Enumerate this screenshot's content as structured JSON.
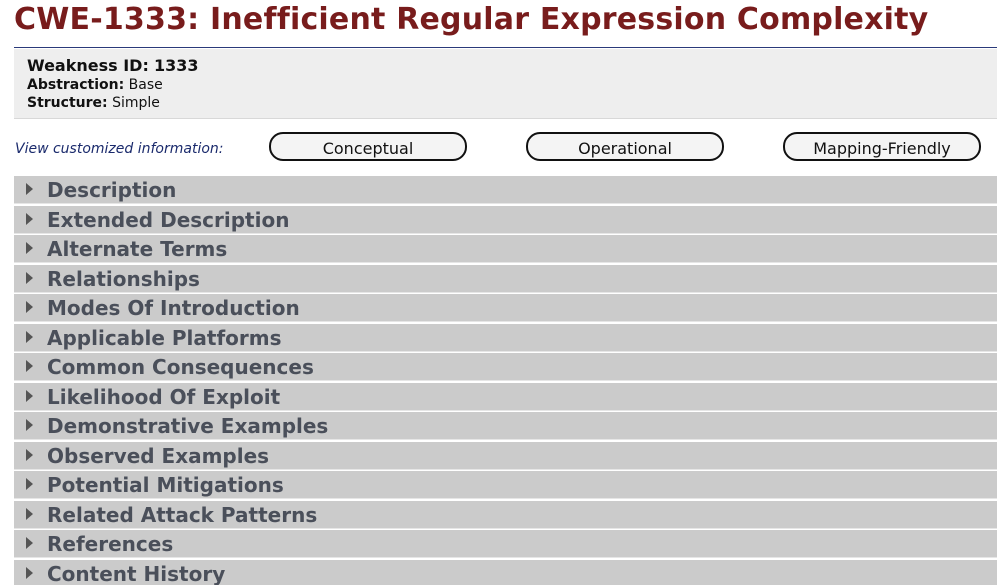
{
  "header": {
    "title": "CWE-1333: Inefficient Regular Expression Complexity"
  },
  "summary": {
    "weakness_id_label": "Weakness ID:",
    "weakness_id_value": "1333",
    "abstraction_label": "Abstraction:",
    "abstraction_value": "Base",
    "structure_label": "Structure:",
    "structure_value": "Simple"
  },
  "views": {
    "label": "View customized information:",
    "buttons": [
      {
        "label": "Conceptual"
      },
      {
        "label": "Operational"
      },
      {
        "label": "Mapping-Friendly"
      }
    ]
  },
  "sections": [
    {
      "label": "Description"
    },
    {
      "label": "Extended Description"
    },
    {
      "label": "Alternate Terms"
    },
    {
      "label": "Relationships"
    },
    {
      "label": "Modes Of Introduction"
    },
    {
      "label": "Applicable Platforms"
    },
    {
      "label": "Common Consequences"
    },
    {
      "label": "Likelihood Of Exploit"
    },
    {
      "label": "Demonstrative Examples"
    },
    {
      "label": "Observed Examples"
    },
    {
      "label": "Potential Mitigations"
    },
    {
      "label": "Related Attack Patterns"
    },
    {
      "label": "References"
    },
    {
      "label": "Content History"
    }
  ],
  "icons": {
    "section_toggle": "triangle-right-icon"
  },
  "colors": {
    "title": "#781c1c",
    "view_label": "#1a2a6c",
    "section_background": "#cbcbcb",
    "section_text": "#4a4f5a",
    "summary_background": "#eeeeee"
  }
}
